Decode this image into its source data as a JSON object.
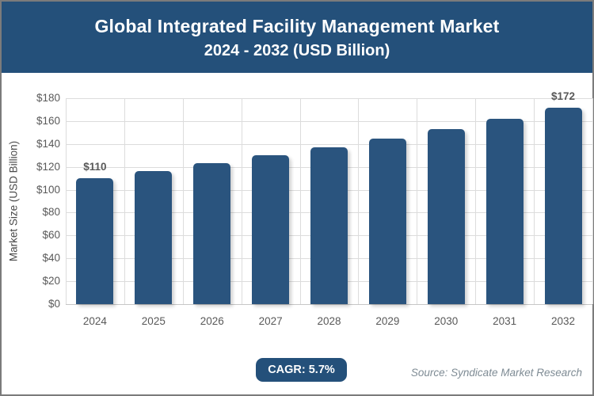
{
  "header": {
    "title": "Global Integrated Facility Management Market",
    "subtitle": "2024 - 2032 (USD Billion)",
    "bg_color": "#24507a",
    "text_color": "#ffffff"
  },
  "chart_data": {
    "type": "bar",
    "title": "Global Integrated Facility Management Market",
    "subtitle": "2024 - 2032 (USD Billion)",
    "xlabel": "",
    "ylabel": "Market Size (USD Billion)",
    "categories": [
      "2024",
      "2025",
      "2026",
      "2027",
      "2028",
      "2029",
      "2030",
      "2031",
      "2032"
    ],
    "values": [
      110,
      116,
      123,
      130,
      137,
      145,
      153,
      162,
      172
    ],
    "bar_labels": [
      "$110",
      "",
      "",
      "",
      "",
      "",
      "",
      "",
      "$172"
    ],
    "ylim": [
      0,
      180
    ],
    "ytick_step": 20,
    "ytick_prefix": "$",
    "grid": true,
    "legend_position": "none",
    "bar_color": "#2a547e",
    "gridline_color": "#dcdcdc",
    "axisline_color": "#c6c6c6",
    "tick_color": "#595959",
    "axis_title_color": "#4a4a4a",
    "bar_label_color": "#595959"
  },
  "footer": {
    "cagr_badge": "CAGR: 5.7%",
    "badge_bg": "#24507a",
    "source": "Source: Syndicate Market Research",
    "source_color": "#7e8b94"
  }
}
